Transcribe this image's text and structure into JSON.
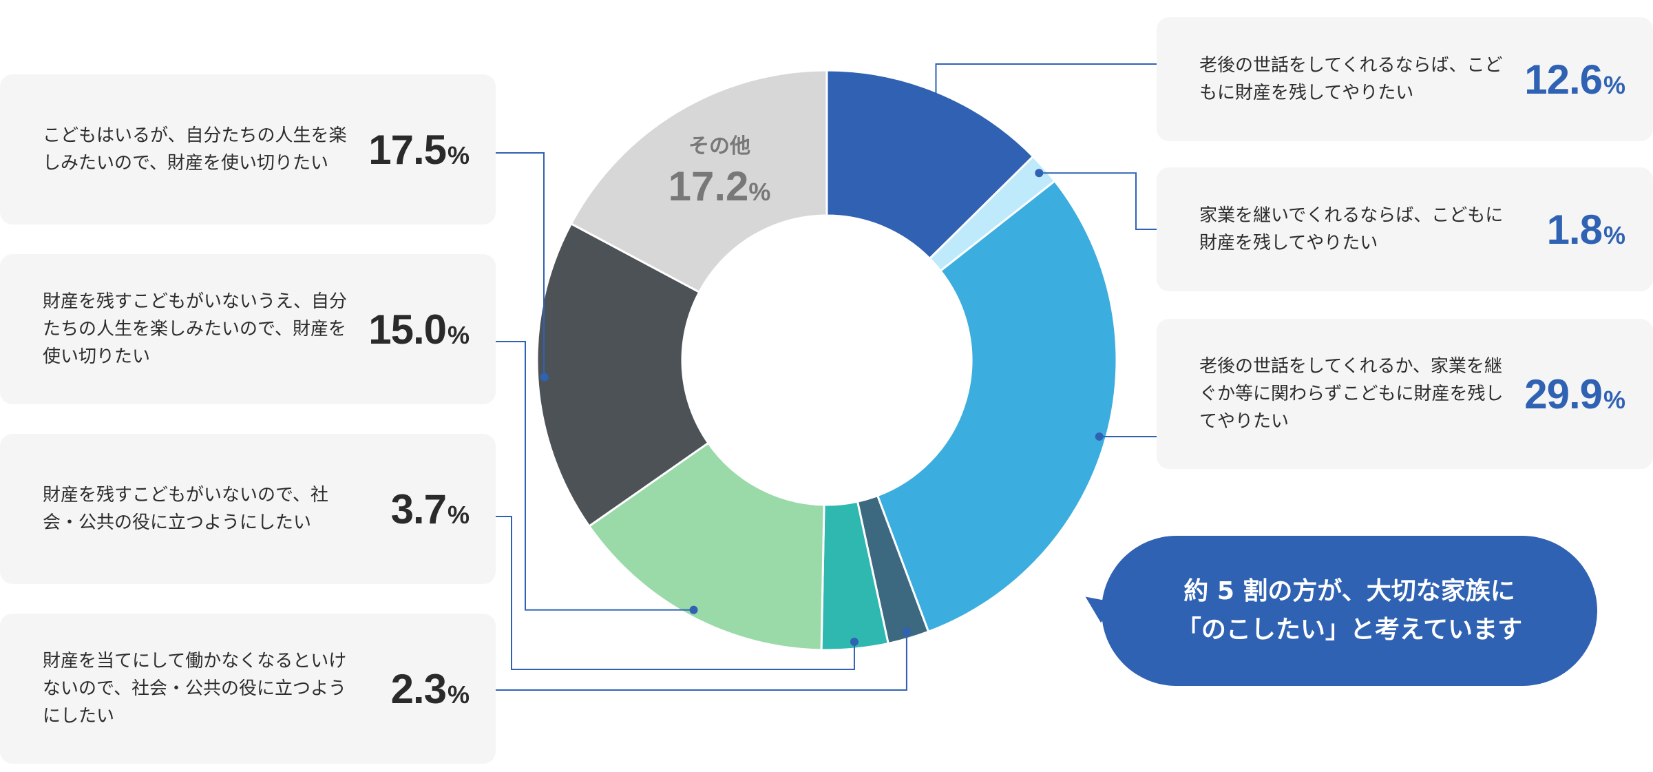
{
  "chart_data": {
    "type": "pie",
    "donut": true,
    "slices": [
      {
        "key": "care-inherit",
        "label": "老後の世話をしてくれるならば、こどもに財産を残してやりたい",
        "value": 12.6,
        "color": "#3061b3"
      },
      {
        "key": "business-inherit",
        "label": "家業を継いでくれるならば、こどもに財産を残してやりたい",
        "value": 1.8,
        "color": "#bfeafc"
      },
      {
        "key": "unconditional-inherit",
        "label": "老後の世話をしてくれるか、家業を継ぐか等に関わらずこどもに財産を残してやりたい",
        "value": 29.9,
        "color": "#3badde"
      },
      {
        "key": "not-idle",
        "label": "財産を当てにして働かなくなるといけないので、社会・公共の役に立つようにしたい",
        "value": 2.3,
        "color": "#3c6880"
      },
      {
        "key": "no-child-public",
        "label": "財産を残すこどもがいないので、社会・公共の役に立つようにしたい",
        "value": 3.7,
        "color": "#2fb8b0"
      },
      {
        "key": "no-child-enjoy",
        "label": "財産を残すこどもがいないうえ、自分たちの人生を楽しみたいので、財産を使い切りたい",
        "value": 15.0,
        "color": "#9ad9a8"
      },
      {
        "key": "child-enjoy",
        "label": "こどもはいるが、自分たちの人生を楽しみたいので、財産を使い切りたい",
        "value": 17.5,
        "color": "#4d5257"
      },
      {
        "key": "other",
        "label": "その他",
        "value": 17.2,
        "color": "#d7d7d7"
      }
    ]
  },
  "cards": {
    "child_enjoy": {
      "label": "こどもはいるが、自分たちの人生を楽しみたいので、財産を使い切りたい",
      "value": "17.5"
    },
    "no_child_enjoy": {
      "label": "財産を残すこどもがいないうえ、自分たちの人生を楽しみたいので、財産を使い切りたい",
      "value": "15.0"
    },
    "no_child_public": {
      "label": "財産を残すこどもがいないので、社会・公共の役に立つようにしたい",
      "value": "3.7"
    },
    "not_idle": {
      "label": "財産を当てにして働かなくなるといけないので、社会・公共の役に立つようにしたい",
      "value": "2.3"
    },
    "care_inherit": {
      "label": "老後の世話をしてくれるならば、こどもに財産を残してやりたい",
      "value": "12.6"
    },
    "business_inherit": {
      "label": "家業を継いでくれるならば、こどもに財産を残してやりたい",
      "value": "1.8"
    },
    "unconditional_inherit": {
      "label": "老後の世話をしてくれるか、家業を継ぐか等に関わらずこどもに財産を残してやりたい",
      "value": "29.9"
    }
  },
  "other_label": {
    "name": "その他",
    "value": "17.2"
  },
  "percent_sign": "%",
  "callout": {
    "line1": "約 5 割の方が、大切な家族に",
    "line2": "「のこしたい」と考えています"
  },
  "colors": {
    "connector": "#2f62b3",
    "accent": "#2f62b3",
    "card_bg": "#f5f5f5"
  }
}
